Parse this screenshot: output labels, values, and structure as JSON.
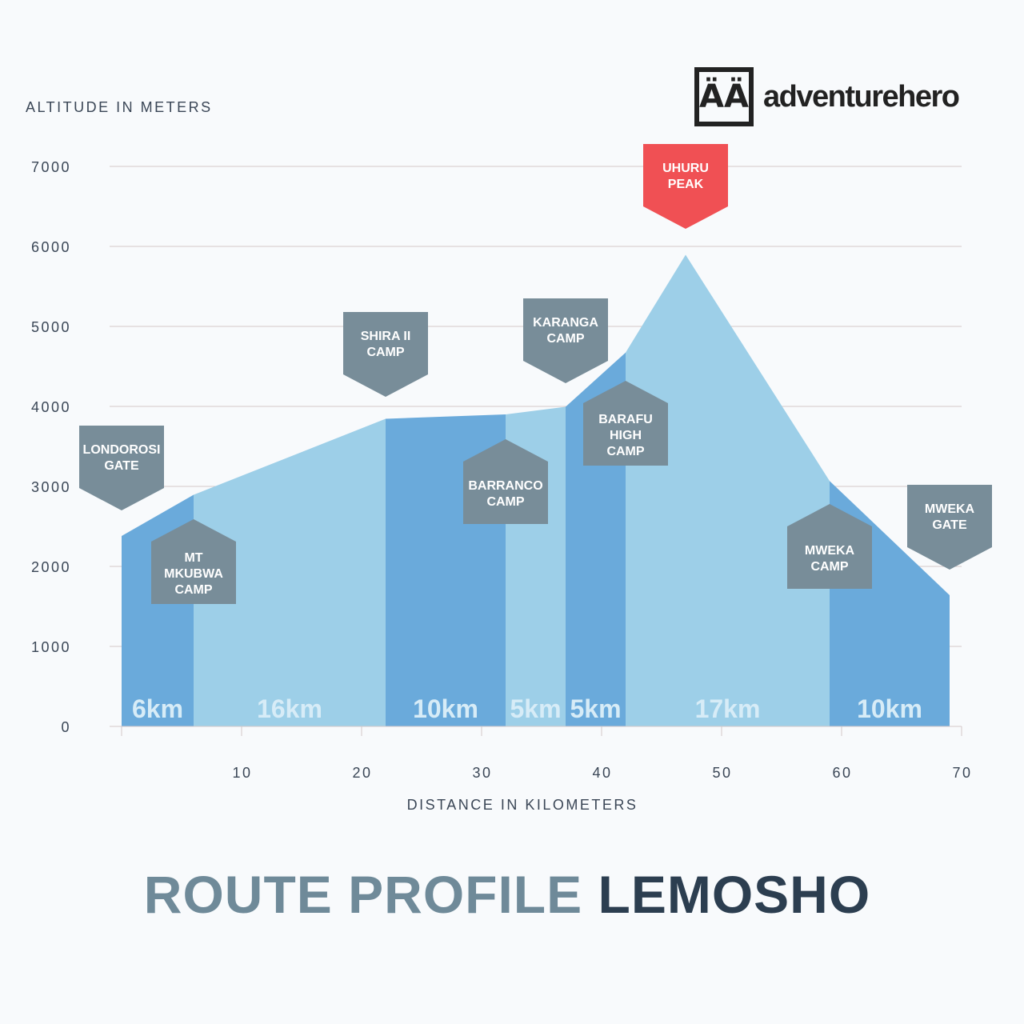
{
  "brand": {
    "logo_glyph": "ÄÄ",
    "name": "adventurehero"
  },
  "page_title": {
    "part1": "ROUTE PROFILE",
    "part2": "LEMOSHO"
  },
  "colors": {
    "dark_segment": "#6aaadb",
    "light_segment": "#9dcfe8",
    "marker": "#788d99",
    "peak_marker": "#f05054",
    "segment_label": "#d7ecf7",
    "grid": "#d5c8c8",
    "axis_text": "#3a4656"
  },
  "chart_data": {
    "type": "area",
    "ylabel": "ALTITUDE IN METERS",
    "xlabel": "DISTANCE IN KILOMETERS",
    "ylim": [
      0,
      7000
    ],
    "xlim": [
      0,
      70
    ],
    "yticks": [
      0,
      1000,
      2000,
      3000,
      4000,
      5000,
      6000,
      7000
    ],
    "xticks": [
      10,
      20,
      30,
      40,
      50,
      60,
      70
    ],
    "grid": true,
    "profile": [
      {
        "x": 0,
        "y": 2380
      },
      {
        "x": 6,
        "y": 2895
      },
      {
        "x": 22,
        "y": 3845
      },
      {
        "x": 32,
        "y": 3900
      },
      {
        "x": 37,
        "y": 3995
      },
      {
        "x": 42,
        "y": 4673
      },
      {
        "x": 47,
        "y": 5895
      },
      {
        "x": 59,
        "y": 3068
      },
      {
        "x": 69,
        "y": 1640
      }
    ],
    "segments": [
      {
        "from": 0,
        "to": 6,
        "label": "6km",
        "shade": "dark"
      },
      {
        "from": 6,
        "to": 22,
        "label": "16km",
        "shade": "light"
      },
      {
        "from": 22,
        "to": 32,
        "label": "10km",
        "shade": "dark"
      },
      {
        "from": 32,
        "to": 37,
        "label": "5km",
        "shade": "light"
      },
      {
        "from": 37,
        "to": 42,
        "label": "5km",
        "shade": "dark"
      },
      {
        "from": 42,
        "to": 59,
        "label": "17km",
        "shade": "light"
      },
      {
        "from": 59,
        "to": 69,
        "label": "10km",
        "shade": "dark"
      }
    ],
    "markers": [
      {
        "name": [
          "LONDOROSI",
          "GATE"
        ],
        "x": 0,
        "pointing": "down",
        "anchor_y": 2700
      },
      {
        "name": [
          "MT",
          "MKUBWA",
          "CAMP"
        ],
        "x": 6,
        "pointing": "up",
        "anchor_y": 2590
      },
      {
        "name": [
          "SHIRA II",
          "CAMP"
        ],
        "x": 22,
        "pointing": "down",
        "anchor_y": 4120
      },
      {
        "name": [
          "BARRANCO",
          "CAMP"
        ],
        "x": 32,
        "pointing": "up",
        "anchor_y": 3590
      },
      {
        "name": [
          "KARANGA",
          "CAMP"
        ],
        "x": 37,
        "pointing": "down",
        "anchor_y": 4290
      },
      {
        "name": [
          "BARAFU",
          "HIGH",
          "CAMP"
        ],
        "x": 42,
        "pointing": "up",
        "anchor_y": 4320
      },
      {
        "name": [
          "UHURU",
          "PEAK"
        ],
        "x": 47,
        "pointing": "down",
        "anchor_y": 6220,
        "highlight": true
      },
      {
        "name": [
          "MWEKA",
          "CAMP"
        ],
        "x": 59,
        "pointing": "up",
        "anchor_y": 2780
      },
      {
        "name": [
          "MWEKA",
          "GATE"
        ],
        "x": 69,
        "pointing": "down",
        "anchor_y": 1960
      }
    ]
  }
}
